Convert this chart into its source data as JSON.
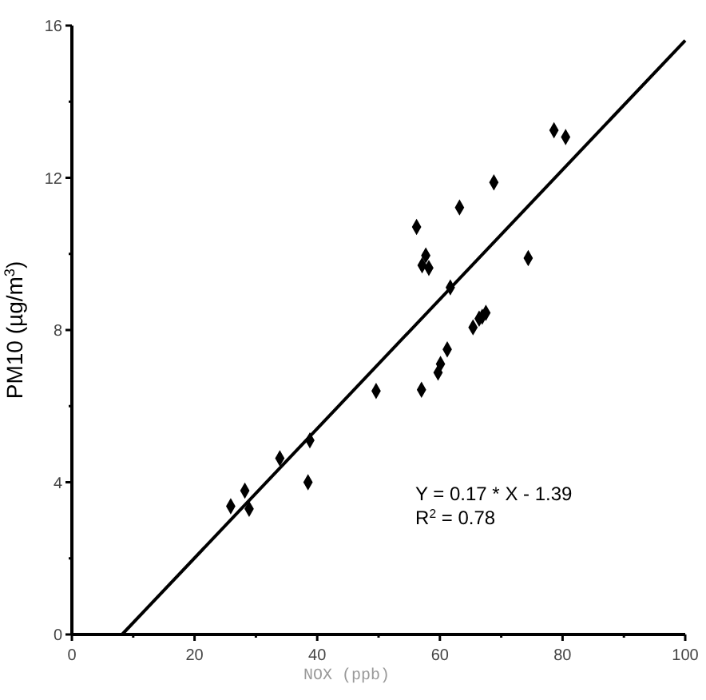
{
  "chart_data": {
    "type": "scatter",
    "xlabel": "NOX (ppb)",
    "ylabel": "PM10 (µg/m$^{3}$)",
    "annotations": [
      "Y = 0.17 * X - 1.39",
      "R$^{2}$ = 0.78"
    ],
    "xlim": [
      0,
      100
    ],
    "ylim": [
      0,
      16
    ],
    "xticks": [
      0,
      {
        "value": 10,
        "label": null
      },
      20,
      {
        "value": 30,
        "label": null
      },
      40,
      {
        "value": 50,
        "label": null
      },
      60,
      {
        "value": 70,
        "label": null
      },
      80,
      {
        "value": 90,
        "label": null
      },
      100
    ],
    "yticks": [
      0,
      {
        "value": 2,
        "label": null
      },
      4,
      {
        "value": 6,
        "label": null
      },
      8,
      {
        "value": 10,
        "label": null
      },
      12,
      {
        "value": 14,
        "label": null
      },
      16
    ],
    "grid": false,
    "marker": "diamond",
    "series": [
      {
        "color": "#000000",
        "x": [
          25.9,
          28.2,
          28.9,
          33.9,
          38.5,
          38.8,
          49.6,
          57.0,
          56.2,
          57.1,
          57.7,
          58.2,
          63.2,
          68.8,
          78.6,
          80.5,
          74.4,
          61.7,
          67.5,
          66.9,
          66.4,
          65.4,
          61.2,
          60.1,
          59.7
        ],
        "values": [
          3.37,
          3.78,
          3.3,
          4.63,
          4.0,
          5.1,
          6.4,
          6.43,
          10.71,
          9.7,
          9.96,
          9.63,
          11.22,
          11.88,
          13.25,
          13.07,
          9.89,
          9.12,
          8.45,
          8.35,
          8.3,
          8.07,
          7.49,
          7.11,
          6.88
        ]
      },
      {
        "type": "line",
        "color": "#000000",
        "line_style": "solid",
        "marker": "none",
        "x": [
          8.18,
          100
        ],
        "values": [
          0,
          15.61
        ]
      }
    ]
  }
}
